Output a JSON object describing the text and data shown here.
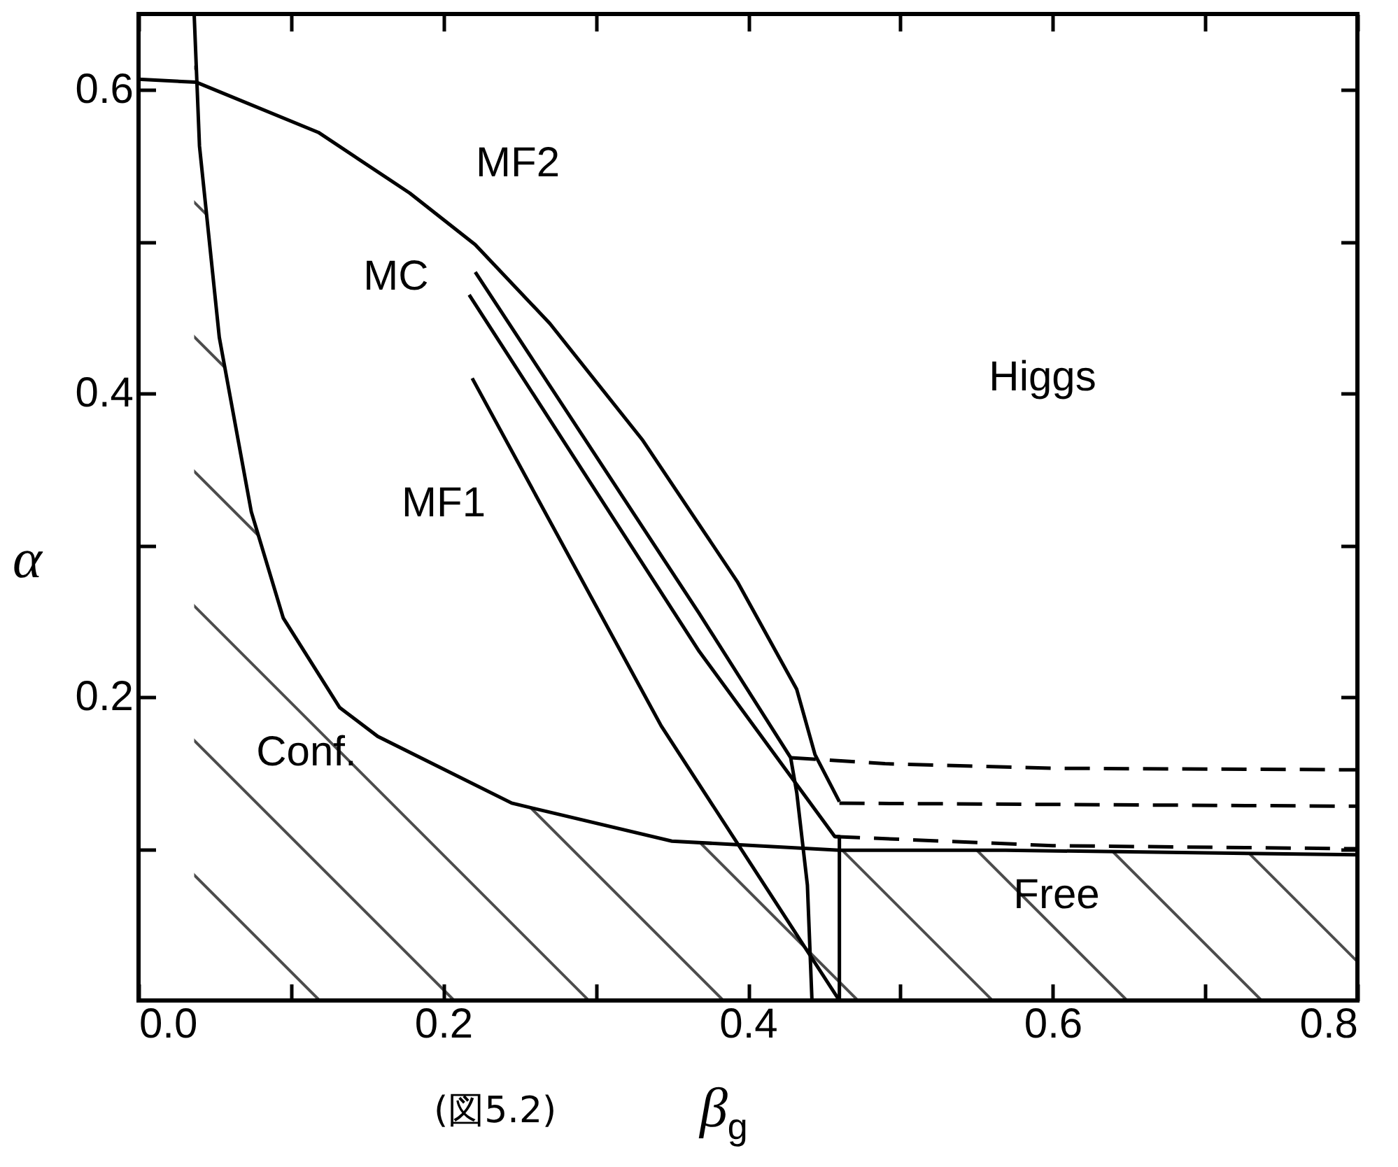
{
  "chart_data": {
    "type": "line",
    "xlabel": "β$_{g}$",
    "ylabel": "α",
    "xlim": [
      0,
      0.8
    ],
    "ylim": [
      0,
      0.65
    ],
    "xticks": [
      {
        "value": 0,
        "label": "0.0"
      },
      {
        "value": 0.1,
        "label": null
      },
      0.2,
      {
        "value": 0.3,
        "label": null
      },
      0.4,
      {
        "value": 0.5,
        "label": null
      },
      0.6,
      {
        "value": 0.7,
        "label": null
      },
      0.8
    ],
    "yticks": [
      {
        "value": 0.1,
        "label": null
      },
      0.2,
      {
        "value": 0.3,
        "label": null
      },
      0.4,
      {
        "value": 0.5,
        "label": null
      },
      0.6
    ],
    "series": [
      {
        "type": "area",
        "color": "#000000",
        "x": [
          0.0365,
          0.04,
          0.053,
          0.074,
          0.095,
          0.132,
          0.157,
          0.245,
          0.35,
          0.46,
          0.569,
          0.8
        ],
        "values": [
          0.65,
          0.563,
          0.437,
          0.322,
          0.252,
          0.193,
          0.174,
          0.13,
          0.105,
          0.099,
          0.099,
          0.096
        ]
      },
      {
        "color": "#000000",
        "line_style": "solid",
        "x": [
          0,
          0.038,
          0.118,
          0.178,
          0.221,
          0.27,
          0.331,
          0.393,
          0.432,
          0.444,
          0.46
        ],
        "values": [
          0.607,
          0.605,
          0.572,
          0.532,
          0.498,
          0.446,
          0.369,
          0.276,
          0.205,
          0.162,
          0.131
        ]
      },
      {
        "color": "#000000",
        "line_style": "dashed",
        "x": [
          0.46,
          0.8
        ],
        "values": [
          0.13,
          0.128
        ]
      },
      {
        "color": "#000000",
        "line_style": "solid",
        "x": [
          0.221,
          0.368,
          0.428,
          0.432,
          0.439,
          0.442
        ],
        "values": [
          0.48,
          0.255,
          0.16,
          0.137,
          0.076,
          0
        ]
      },
      {
        "color": "#000000",
        "line_style": "dashed",
        "x": [
          0.428,
          0.49,
          0.6,
          0.8
        ],
        "values": [
          0.16,
          0.156,
          0.153,
          0.152
        ]
      },
      {
        "color": "#000000",
        "line_style": "solid",
        "x": [
          0.217,
          0.368,
          0.457,
          0.46,
          0.46
        ],
        "values": [
          0.465,
          0.23,
          0.108,
          0.108,
          0
        ]
      },
      {
        "color": "#000000",
        "line_style": "dashed",
        "x": [
          0.457,
          0.6,
          0.8
        ],
        "values": [
          0.108,
          0.102,
          0.1
        ]
      },
      {
        "color": "#000000",
        "line_style": "solid",
        "x": [
          0.219,
          0.343,
          0.46
        ],
        "values": [
          0.41,
          0.181,
          0
        ]
      }
    ],
    "annotations": [
      "MF2",
      "MC",
      "MF1",
      "Higgs",
      "Conf.",
      "Free",
      "(図5.2)"
    ]
  }
}
